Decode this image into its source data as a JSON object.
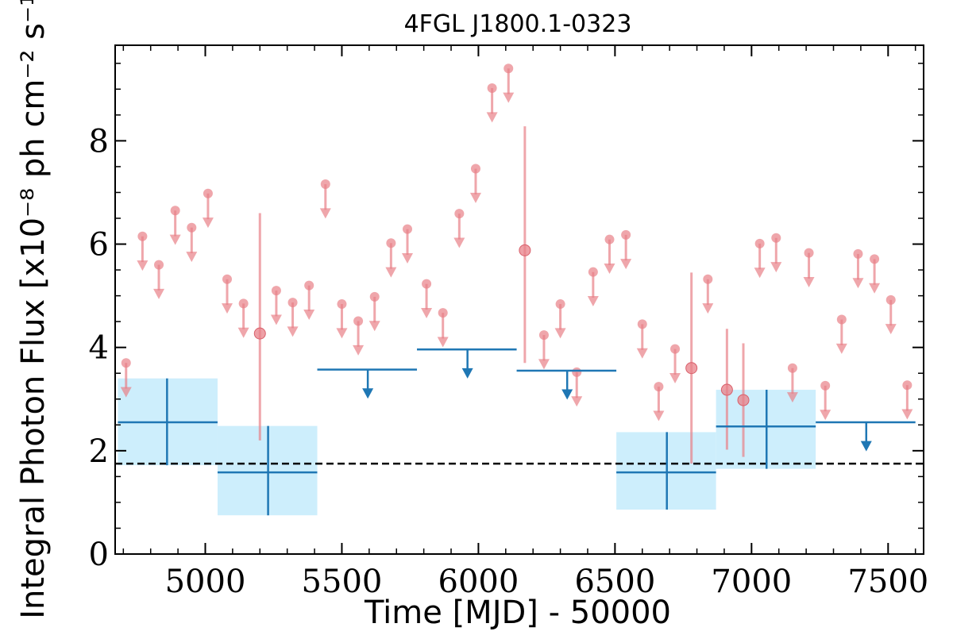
{
  "chart_data": {
    "type": "scatter",
    "title": "4FGL J1800.1-0323",
    "xlabel": "Time [MJD] - 50000",
    "ylabel": "Integral Photon Flux [x10⁻⁸ ph cm⁻² s⁻¹]",
    "xlim": [
      4670,
      7630
    ],
    "ylim": [
      0,
      9.85
    ],
    "xticks": [
      5000,
      5500,
      6000,
      6500,
      7000,
      7500
    ],
    "yticks": [
      0,
      2,
      4,
      6,
      8
    ],
    "reference_line": {
      "y": 1.75,
      "style": "dashed",
      "color": "#000000"
    },
    "series": [
      {
        "style": "fine-bin",
        "color": "#e88088",
        "upper_limits": [
          {
            "x": 4710,
            "y": 3.7
          },
          {
            "x": 4770,
            "y": 6.15
          },
          {
            "x": 4830,
            "y": 5.6
          },
          {
            "x": 4890,
            "y": 6.65
          },
          {
            "x": 4950,
            "y": 6.32
          },
          {
            "x": 5010,
            "y": 6.98
          },
          {
            "x": 5080,
            "y": 5.32
          },
          {
            "x": 5140,
            "y": 4.85
          },
          {
            "x": 5260,
            "y": 5.1
          },
          {
            "x": 5320,
            "y": 4.87
          },
          {
            "x": 5380,
            "y": 5.2
          },
          {
            "x": 5440,
            "y": 7.16
          },
          {
            "x": 5500,
            "y": 4.84
          },
          {
            "x": 5560,
            "y": 4.51
          },
          {
            "x": 5620,
            "y": 4.98
          },
          {
            "x": 5680,
            "y": 6.02
          },
          {
            "x": 5740,
            "y": 6.29
          },
          {
            "x": 5810,
            "y": 5.23
          },
          {
            "x": 5870,
            "y": 4.67
          },
          {
            "x": 5930,
            "y": 6.59
          },
          {
            "x": 5990,
            "y": 7.46
          },
          {
            "x": 6050,
            "y": 9.02
          },
          {
            "x": 6110,
            "y": 9.4
          },
          {
            "x": 6240,
            "y": 4.24
          },
          {
            "x": 6300,
            "y": 4.84
          },
          {
            "x": 6360,
            "y": 3.52
          },
          {
            "x": 6420,
            "y": 5.46
          },
          {
            "x": 6480,
            "y": 6.09
          },
          {
            "x": 6540,
            "y": 6.18
          },
          {
            "x": 6600,
            "y": 4.45
          },
          {
            "x": 6660,
            "y": 3.24
          },
          {
            "x": 6720,
            "y": 3.97
          },
          {
            "x": 6840,
            "y": 5.32
          },
          {
            "x": 7030,
            "y": 6.01
          },
          {
            "x": 7090,
            "y": 6.12
          },
          {
            "x": 7150,
            "y": 3.6
          },
          {
            "x": 7210,
            "y": 5.83
          },
          {
            "x": 7270,
            "y": 3.26
          },
          {
            "x": 7330,
            "y": 4.54
          },
          {
            "x": 7390,
            "y": 5.81
          },
          {
            "x": 7450,
            "y": 5.71
          },
          {
            "x": 7510,
            "y": 4.92
          },
          {
            "x": 7570,
            "y": 3.27
          }
        ],
        "detections": [
          {
            "x": 5200,
            "y": 4.27,
            "y_low": 2.2,
            "y_high": 6.6
          },
          {
            "x": 6170,
            "y": 5.88,
            "y_low": 3.7,
            "y_high": 8.28
          },
          {
            "x": 6780,
            "y": 3.6,
            "y_low": 1.75,
            "y_high": 5.45
          },
          {
            "x": 6910,
            "y": 3.18,
            "y_low": 2.02,
            "y_high": 4.36
          },
          {
            "x": 6970,
            "y": 2.98,
            "y_low": 1.88,
            "y_high": 4.08
          }
        ]
      },
      {
        "style": "coarse-bin",
        "color": "#1f77b4",
        "band_color": "#cdeefc",
        "detections": [
          {
            "x": 4860,
            "x_low": 4680,
            "x_high": 5045,
            "y": 2.55,
            "y_low": 1.72,
            "y_high": 3.4
          },
          {
            "x": 5230,
            "x_low": 5045,
            "x_high": 5410,
            "y": 1.58,
            "y_low": 0.75,
            "y_high": 2.48
          },
          {
            "x": 6690,
            "x_low": 6505,
            "x_high": 6870,
            "y": 1.58,
            "y_low": 0.86,
            "y_high": 2.36
          },
          {
            "x": 7055,
            "x_low": 6870,
            "x_high": 7235,
            "y": 2.47,
            "y_low": 1.65,
            "y_high": 3.18
          }
        ],
        "upper_limits": [
          {
            "x": 5595,
            "x_low": 5410,
            "x_high": 5775,
            "y": 3.57
          },
          {
            "x": 5960,
            "x_low": 5775,
            "x_high": 6140,
            "y": 3.96
          },
          {
            "x": 6325,
            "x_low": 6140,
            "x_high": 6505,
            "y": 3.55
          },
          {
            "x": 7420,
            "x_low": 7235,
            "x_high": 7600,
            "y": 2.55
          }
        ]
      }
    ]
  }
}
